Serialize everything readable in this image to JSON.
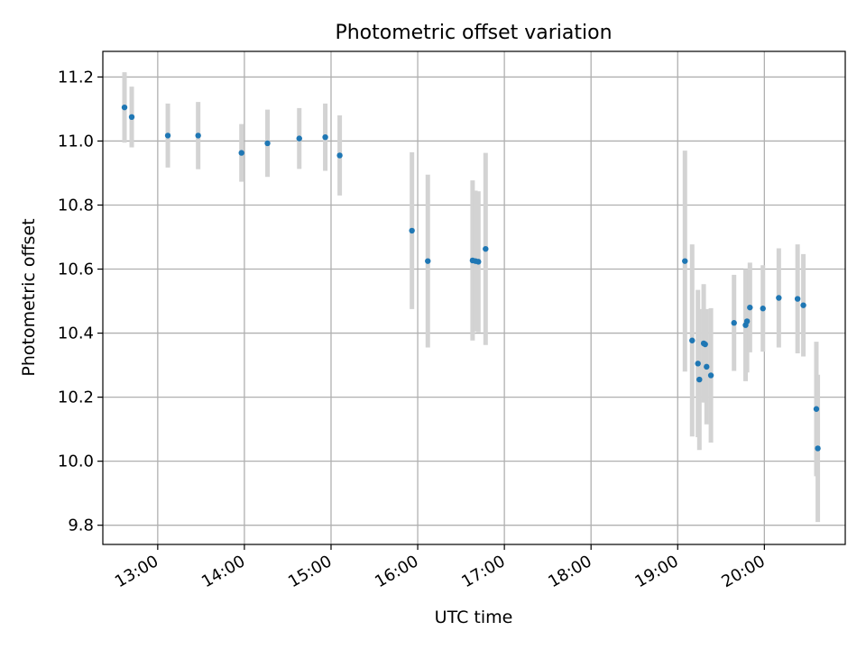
{
  "chart_data": {
    "type": "scatter",
    "title": "Photometric offset variation",
    "xlabel": "UTC time",
    "ylabel": "Photometric offset",
    "xlim": [
      "12:22",
      "20:56"
    ],
    "ylim": [
      9.74,
      11.28
    ],
    "grid": true,
    "x_ticks": [
      "13:00",
      "14:00",
      "15:00",
      "16:00",
      "17:00",
      "18:00",
      "19:00",
      "20:00"
    ],
    "y_ticks": [
      "9.8",
      "10.0",
      "10.2",
      "10.4",
      "10.6",
      "10.8",
      "11.0",
      "11.2"
    ],
    "point_color": "#1f77b4",
    "errorbar_color": "#d3d3d3",
    "points": [
      {
        "x": "12:37",
        "y": 11.105,
        "err": 0.11
      },
      {
        "x": "12:42",
        "y": 11.075,
        "err": 0.095
      },
      {
        "x": "13:07",
        "y": 11.017,
        "err": 0.1
      },
      {
        "x": "13:28",
        "y": 11.017,
        "err": 0.105
      },
      {
        "x": "13:58",
        "y": 10.963,
        "err": 0.09
      },
      {
        "x": "14:16",
        "y": 10.993,
        "err": 0.105
      },
      {
        "x": "14:38",
        "y": 11.008,
        "err": 0.095
      },
      {
        "x": "14:56",
        "y": 11.012,
        "err": 0.105
      },
      {
        "x": "15:06",
        "y": 10.955,
        "err": 0.125
      },
      {
        "x": "15:56",
        "y": 10.72,
        "err": 0.245
      },
      {
        "x": "16:07",
        "y": 10.625,
        "err": 0.27
      },
      {
        "x": "16:38",
        "y": 10.627,
        "err": 0.25
      },
      {
        "x": "16:40",
        "y": 10.625,
        "err": 0.22
      },
      {
        "x": "16:42",
        "y": 10.623,
        "err": 0.22
      },
      {
        "x": "16:47",
        "y": 10.663,
        "err": 0.3
      },
      {
        "x": "19:05",
        "y": 10.625,
        "err": 0.345
      },
      {
        "x": "19:10",
        "y": 10.377,
        "err": 0.3
      },
      {
        "x": "19:14",
        "y": 10.305,
        "err": 0.23
      },
      {
        "x": "19:15",
        "y": 10.255,
        "err": 0.22
      },
      {
        "x": "19:18",
        "y": 10.368,
        "err": 0.185
      },
      {
        "x": "19:19",
        "y": 10.365,
        "err": 0.105
      },
      {
        "x": "19:20",
        "y": 10.295,
        "err": 0.18
      },
      {
        "x": "19:23",
        "y": 10.268,
        "err": 0.21
      },
      {
        "x": "19:39",
        "y": 10.432,
        "err": 0.15
      },
      {
        "x": "19:47",
        "y": 10.425,
        "err": 0.175
      },
      {
        "x": "19:48",
        "y": 10.437,
        "err": 0.16
      },
      {
        "x": "19:50",
        "y": 10.48,
        "err": 0.14
      },
      {
        "x": "19:59",
        "y": 10.477,
        "err": 0.135
      },
      {
        "x": "20:10",
        "y": 10.51,
        "err": 0.155
      },
      {
        "x": "20:23",
        "y": 10.507,
        "err": 0.17
      },
      {
        "x": "20:27",
        "y": 10.487,
        "err": 0.16
      },
      {
        "x": "20:36",
        "y": 10.163,
        "err": 0.21
      },
      {
        "x": "20:37",
        "y": 10.04,
        "err": 0.23
      }
    ]
  }
}
